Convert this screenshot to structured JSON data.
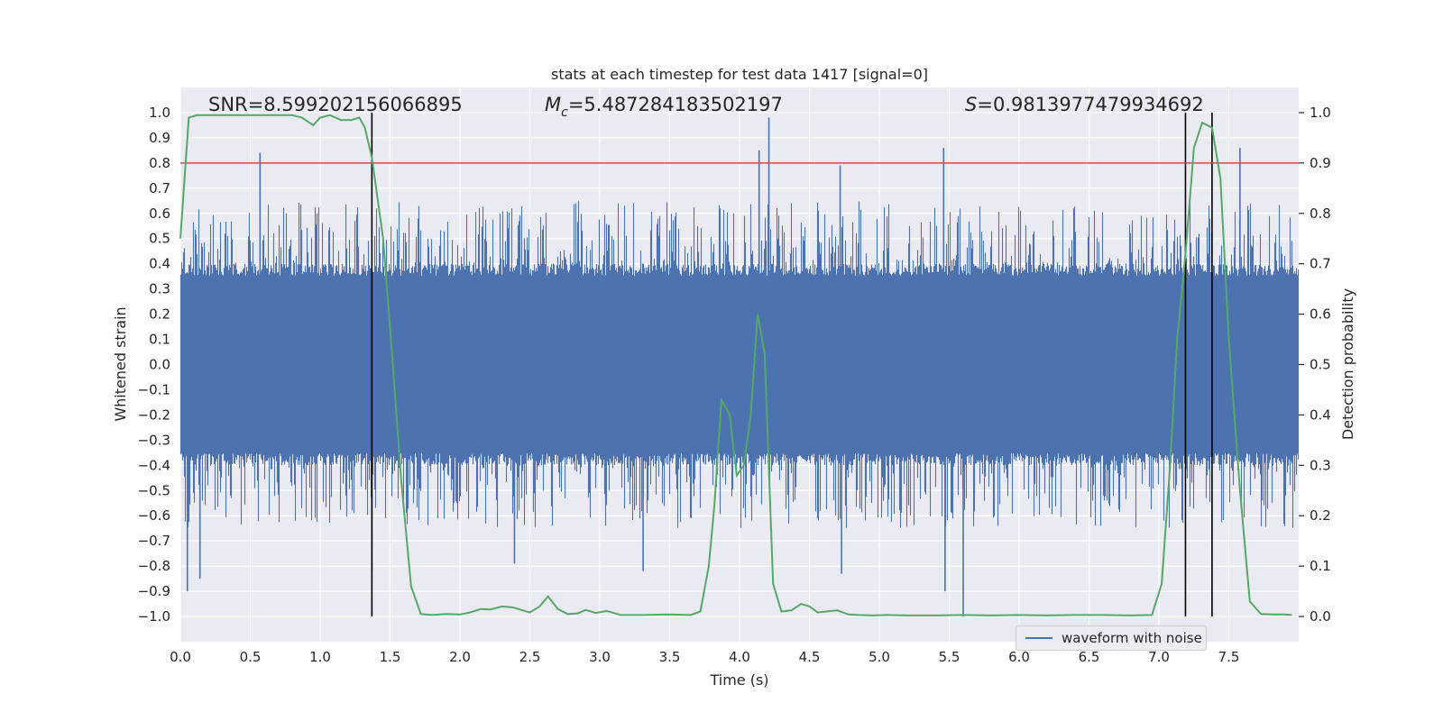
{
  "chart_data": {
    "type": "line",
    "title": "stats at each timestep for test data 1417 [signal=0]",
    "xlabel": "Time (s)",
    "ylabel_left": "Whitened strain",
    "ylabel_right": "Detection probability",
    "xlim": [
      0.0,
      8.0
    ],
    "ylim_left": [
      -1.1,
      1.1
    ],
    "ylim_right": [
      -0.05,
      1.05
    ],
    "x_ticks": [
      "0.0",
      "0.5",
      "1.0",
      "1.5",
      "2.0",
      "2.5",
      "3.0",
      "3.5",
      "4.0",
      "4.5",
      "5.0",
      "5.5",
      "6.0",
      "6.5",
      "7.0",
      "7.5"
    ],
    "y_left_ticks": [
      "1.0",
      "0.9",
      "0.8",
      "0.7",
      "0.6",
      "0.5",
      "0.4",
      "0.3",
      "0.2",
      "0.1",
      "0.0",
      "-0.1",
      "-0.2",
      "-0.3",
      "-0.4",
      "-0.5",
      "-0.6",
      "-0.7",
      "-0.8",
      "-0.9",
      "-1.0"
    ],
    "y_right_ticks": [
      "1.0",
      "0.9",
      "0.8",
      "0.7",
      "0.6",
      "0.5",
      "0.4",
      "0.3",
      "0.2",
      "0.1",
      "0.0"
    ],
    "annotations": {
      "snr": "SNR=8.599202156066895",
      "mc_symbol": "M",
      "mc_sub": "c",
      "mc_value": "=5.487284183502197",
      "s_symbol": "S",
      "s_value": "=0.9813977479934692"
    },
    "threshold": {
      "value": 0.9,
      "axis": "right",
      "color": "#c44e52"
    },
    "vertical_lines": [
      1.37,
      7.19,
      7.38
    ],
    "series": [
      {
        "name": "waveform with noise",
        "axis": "left",
        "color": "#4c72b0",
        "kind": "noise",
        "core_amplitude": 0.4,
        "spikes": [
          [
            0.57,
            0.84
          ],
          [
            0.05,
            -0.9
          ],
          [
            0.14,
            -0.85
          ],
          [
            1.37,
            -0.82
          ],
          [
            4.14,
            0.85
          ],
          [
            4.21,
            0.98
          ],
          [
            4.72,
            0.79
          ],
          [
            5.46,
            0.86
          ],
          [
            5.6,
            -1.0
          ],
          [
            5.47,
            -0.9
          ],
          [
            7.58,
            0.86
          ],
          [
            2.39,
            -0.79
          ],
          [
            3.31,
            -0.82
          ],
          [
            4.73,
            -0.83
          ]
        ]
      },
      {
        "name": "Detection probability",
        "axis": "right",
        "color": "#55a868",
        "x": [
          0.0,
          0.06,
          0.12,
          0.2,
          0.3,
          0.4,
          0.5,
          0.6,
          0.7,
          0.8,
          0.87,
          0.95,
          1.0,
          1.07,
          1.15,
          1.22,
          1.28,
          1.32,
          1.37,
          1.45,
          1.52,
          1.58,
          1.65,
          1.72,
          1.8,
          1.9,
          2.0,
          2.07,
          2.15,
          2.22,
          2.3,
          2.38,
          2.45,
          2.5,
          2.57,
          2.63,
          2.7,
          2.77,
          2.84,
          2.9,
          2.97,
          3.05,
          3.15,
          3.3,
          3.5,
          3.65,
          3.72,
          3.78,
          3.82,
          3.87,
          3.93,
          3.98,
          4.03,
          4.08,
          4.13,
          4.18,
          4.24,
          4.3,
          4.37,
          4.44,
          4.5,
          4.56,
          4.62,
          4.7,
          4.78,
          4.85,
          4.95,
          5.05,
          5.2,
          5.4,
          5.6,
          5.8,
          6.0,
          6.2,
          6.4,
          6.6,
          6.8,
          6.95,
          7.02,
          7.08,
          7.13,
          7.19,
          7.25,
          7.31,
          7.38,
          7.44,
          7.5,
          7.58,
          7.65,
          7.73,
          7.82,
          7.9,
          7.95
        ],
        "y": [
          0.75,
          0.99,
          0.995,
          0.995,
          0.995,
          0.995,
          0.995,
          0.995,
          0.995,
          0.995,
          0.99,
          0.975,
          0.99,
          0.995,
          0.985,
          0.985,
          0.99,
          0.97,
          0.91,
          0.75,
          0.5,
          0.27,
          0.06,
          0.005,
          0.003,
          0.005,
          0.004,
          0.008,
          0.015,
          0.014,
          0.02,
          0.018,
          0.012,
          0.008,
          0.02,
          0.04,
          0.015,
          0.005,
          0.006,
          0.013,
          0.007,
          0.011,
          0.003,
          0.003,
          0.004,
          0.003,
          0.01,
          0.1,
          0.22,
          0.43,
          0.4,
          0.28,
          0.3,
          0.4,
          0.6,
          0.52,
          0.065,
          0.01,
          0.012,
          0.025,
          0.02,
          0.008,
          0.01,
          0.012,
          0.004,
          0.003,
          0.002,
          0.003,
          0.002,
          0.002,
          0.003,
          0.002,
          0.003,
          0.002,
          0.003,
          0.003,
          0.002,
          0.003,
          0.065,
          0.3,
          0.55,
          0.72,
          0.93,
          0.98,
          0.97,
          0.87,
          0.55,
          0.25,
          0.03,
          0.005,
          0.004,
          0.004,
          0.003
        ]
      }
    ]
  }
}
